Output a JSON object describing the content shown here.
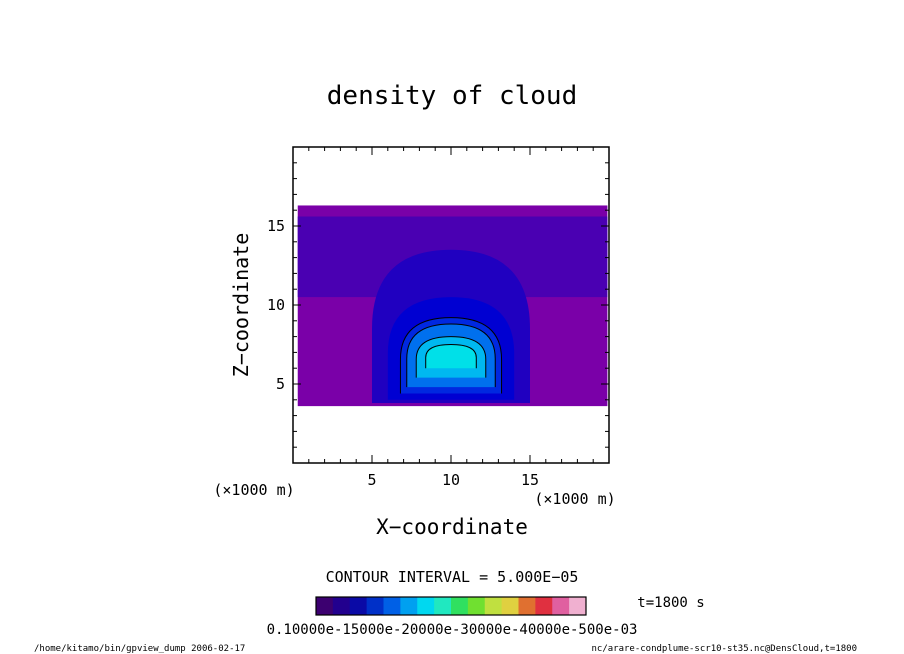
{
  "chart_data": {
    "type": "heatmap",
    "title": "density of cloud",
    "xlabel": "X−coordinate",
    "ylabel": "Z−coordinate",
    "x_unit_label": "(×1000 m)",
    "y_unit_label": "(×1000 m)",
    "xlim": [
      0,
      20
    ],
    "ylim": [
      0,
      20
    ],
    "x_ticks": [
      5,
      10,
      15
    ],
    "y_ticks": [
      5,
      10,
      15
    ],
    "grid": false,
    "contour_interval_text": "CONTOUR INTERVAL = 5.000E−05",
    "time_label": "t=1800 s",
    "colorbar_range": [
      0.0001,
      0.00055
    ],
    "colorbar_text": "0.10000e-15000e-20000e-30000e-40000e-500e-03",
    "colorbar_colors": [
      "#3c0070",
      "#22008e",
      "#0a0aa6",
      "#0030c8",
      "#0060e6",
      "#00a0f0",
      "#00d8f0",
      "#20e8c0",
      "#30e060",
      "#70e030",
      "#c0e040",
      "#e0d040",
      "#e07030",
      "#e03040",
      "#e060a0",
      "#f0b0d0"
    ],
    "field_colors": [
      "#7a00a8",
      "#4a00b2",
      "#2000c0",
      "#0000d2",
      "#0028e0",
      "#0070ee",
      "#00b8f0",
      "#00e0e8",
      "#00f4dc"
    ],
    "cloud_layers": [
      {
        "density": 0.00011,
        "x_range": [
          0.3,
          19.9
        ],
        "z_range": [
          3.6,
          16.3
        ]
      },
      {
        "density": 0.00016,
        "x_range": [
          0.3,
          19.9
        ],
        "z_range": [
          10.5,
          15.6
        ]
      },
      {
        "density": 0.00021,
        "x_range": [
          5.0,
          15.0
        ],
        "z_range": [
          3.8,
          13.5
        ]
      },
      {
        "density": 0.00026,
        "x_range": [
          6.0,
          14.0
        ],
        "z_range": [
          4.0,
          10.5
        ]
      },
      {
        "density": 0.00031,
        "x_range": [
          6.8,
          13.2
        ],
        "z_range": [
          4.4,
          9.2
        ]
      },
      {
        "density": 0.00036,
        "x_range": [
          7.2,
          12.8
        ],
        "z_range": [
          4.8,
          8.8
        ]
      },
      {
        "density": 0.00041,
        "x_range": [
          7.8,
          12.2
        ],
        "z_range": [
          5.4,
          8.0
        ]
      },
      {
        "density": 0.00046,
        "x_range": [
          8.4,
          11.6
        ],
        "z_range": [
          6.0,
          7.5
        ]
      }
    ],
    "footer_left": "/home/kitamo/bin/gpview_dump  2006-02-17",
    "footer_right": "nc/arare-condplume-scr10-st35.nc@DensCloud,t=1800"
  }
}
